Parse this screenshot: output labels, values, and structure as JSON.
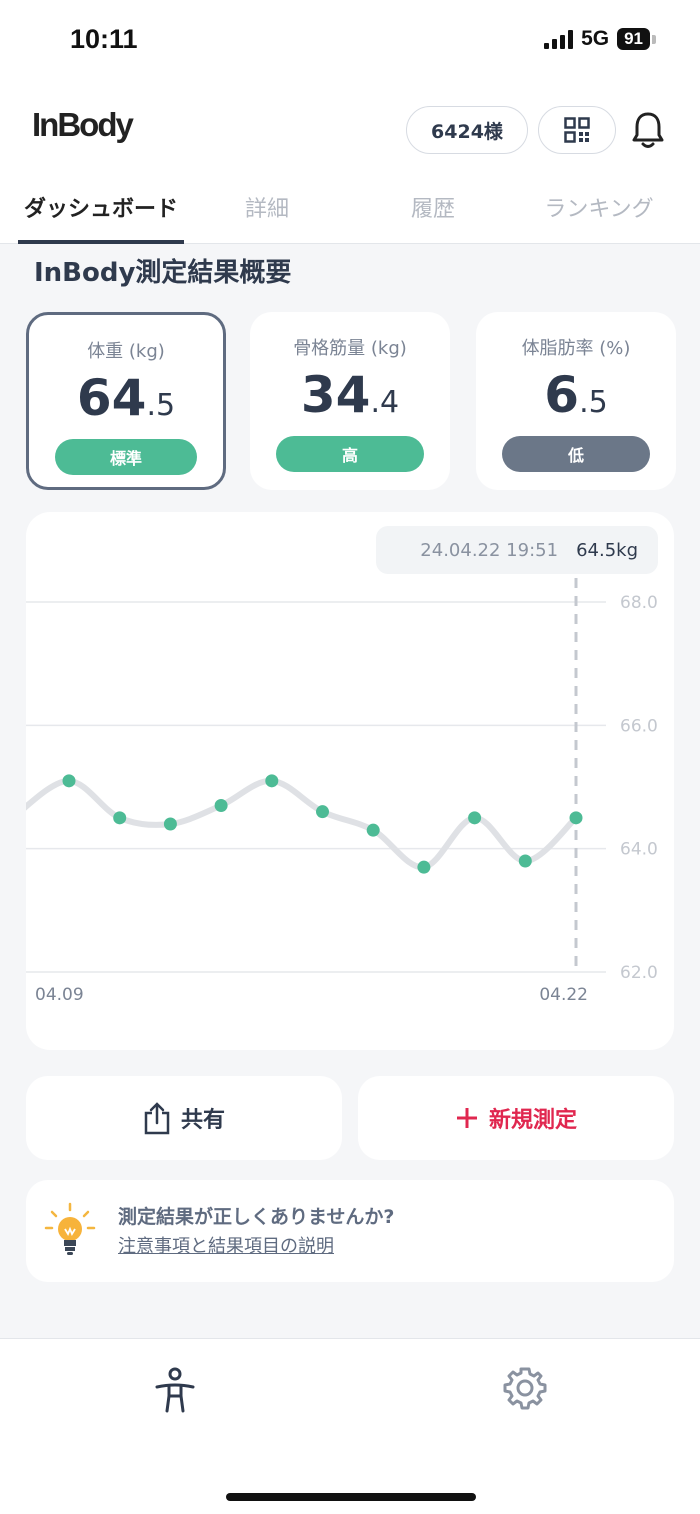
{
  "status_bar": {
    "time": "10:11",
    "network": "5G",
    "battery": "91"
  },
  "header": {
    "logo": "InBody",
    "points": "6424様",
    "icons": [
      "qr-code-icon",
      "bell-icon"
    ]
  },
  "tabs": [
    {
      "label": "ダッシュボード",
      "active": true
    },
    {
      "label": "詳細",
      "active": false
    },
    {
      "label": "履歴",
      "active": false
    },
    {
      "label": "ランキング",
      "active": false
    }
  ],
  "section_title": "InBody測定結果概要",
  "cards": [
    {
      "label": "体重 (kg)",
      "int": "64",
      "dec": ".5",
      "badge": "標準",
      "badge_color": "#4dbb95",
      "selected": true
    },
    {
      "label": "骨格筋量 (kg)",
      "int": "34",
      "dec": ".4",
      "badge": "高",
      "badge_color": "#4dbb95",
      "selected": false
    },
    {
      "label": "体脂肪率 (%)",
      "int": "6",
      "dec": ".5",
      "badge": "低",
      "badge_color": "#6b7788",
      "selected": false
    }
  ],
  "tooltip": {
    "date": "24.04.22 19:51",
    "value": "64.5kg"
  },
  "chart_data": {
    "type": "line",
    "x_labels": [
      "04.09",
      "04.22"
    ],
    "values": [
      65.1,
      64.5,
      64.4,
      64.7,
      65.1,
      64.6,
      64.3,
      63.7,
      64.5,
      63.8,
      64.5
    ],
    "ylim": [
      62.0,
      68.0
    ],
    "yticks": [
      "68.0",
      "66.0",
      "64.0",
      "62.0"
    ],
    "line_color": "#dfe1e5",
    "point_color": "#4dbb95"
  },
  "actions": {
    "share_label": "共有",
    "new_label": "新規測定",
    "new_color": "#e0274f"
  },
  "info": {
    "question": "測定結果が正しくありませんか?",
    "link": "注意事項と結果項目の説明"
  },
  "bottom_nav": {
    "icons": [
      "person-icon",
      "gear-icon"
    ]
  }
}
